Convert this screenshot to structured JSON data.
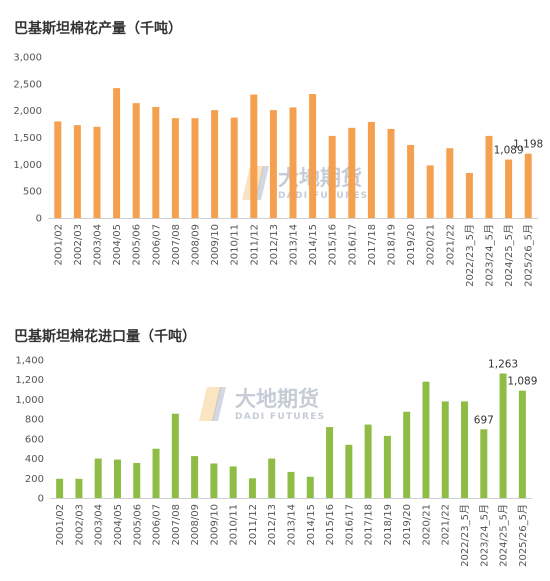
{
  "watermark": {
    "cn": "大地期货",
    "en": "DADI FUTURES"
  },
  "chart_data": [
    {
      "type": "bar",
      "title": "巴基斯坦棉花产量（千吨）",
      "color": "#f5a04f",
      "categories": [
        "2001/02",
        "2002/03",
        "2003/04",
        "2004/05",
        "2005/06",
        "2006/07",
        "2007/08",
        "2008/09",
        "2009/10",
        "2010/11",
        "2011/12",
        "2012/13",
        "2013/14",
        "2014/15",
        "2015/16",
        "2016/17",
        "2017/18",
        "2018/19",
        "2019/20",
        "2020/21",
        "2021/22",
        "2022/23_5月",
        "2023/24_5月",
        "2024/25_5月",
        "2025/26_5月"
      ],
      "values": [
        1800,
        1730,
        1700,
        2420,
        2140,
        2070,
        1860,
        1860,
        2010,
        1870,
        2300,
        2010,
        2060,
        2310,
        1530,
        1680,
        1790,
        1660,
        1360,
        980,
        1300,
        840,
        1530,
        1089,
        1198
      ],
      "data_labels": {
        "23": "1,089",
        "24": "1,198"
      },
      "ylim": [
        0,
        3000
      ],
      "yticks": [
        0,
        500,
        1000,
        1500,
        2000,
        2500,
        3000
      ],
      "ytick_labels": [
        "0",
        "500",
        "1,000",
        "1,500",
        "2,000",
        "2,500",
        "3,000"
      ],
      "xlabel": "",
      "ylabel": "",
      "grid": false,
      "legend": "none"
    },
    {
      "type": "bar",
      "title": "巴基斯坦棉花进口量（千吨）",
      "color": "#8fbc45",
      "categories": [
        "2001/02",
        "2002/03",
        "2003/04",
        "2004/05",
        "2005/06",
        "2006/07",
        "2007/08",
        "2008/09",
        "2009/10",
        "2010/11",
        "2011/12",
        "2012/13",
        "2013/14",
        "2014/15",
        "2015/16",
        "2016/17",
        "2017/18",
        "2018/19",
        "2019/20",
        "2020/21",
        "2021/22",
        "2022/23_5月",
        "2023/24_5月",
        "2024/25_5月",
        "2025/26_5月"
      ],
      "values": [
        195,
        195,
        400,
        390,
        355,
        500,
        855,
        425,
        350,
        320,
        200,
        400,
        265,
        215,
        720,
        540,
        745,
        630,
        875,
        1180,
        980,
        980,
        697,
        1263,
        1089
      ],
      "data_labels": {
        "22": "697",
        "23": "1,263",
        "24": "1,089"
      },
      "ylim": [
        0,
        1400
      ],
      "yticks": [
        0,
        200,
        400,
        600,
        800,
        1000,
        1200,
        1400
      ],
      "ytick_labels": [
        "0",
        "200",
        "400",
        "600",
        "800",
        "1,000",
        "1,200",
        "1,400"
      ],
      "xlabel": "",
      "ylabel": "",
      "grid": false,
      "legend": "none"
    }
  ]
}
